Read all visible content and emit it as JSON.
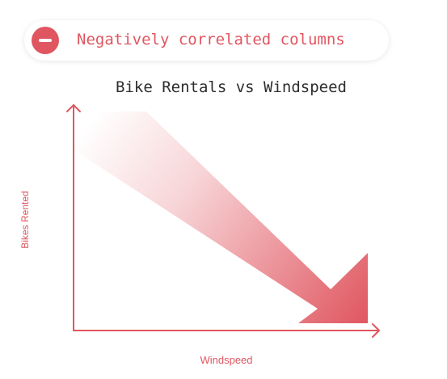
{
  "badge": {
    "label": "Negatively correlated columns",
    "icon": "minus-circle-icon"
  },
  "diagram": {
    "title": "Bike Rentals vs Windspeed",
    "x_axis_label": "Windspeed",
    "y_axis_label": "Bikes Rented",
    "trend": "negative",
    "colors": {
      "accent": "#e05660",
      "title": "#2d2d2d"
    }
  }
}
